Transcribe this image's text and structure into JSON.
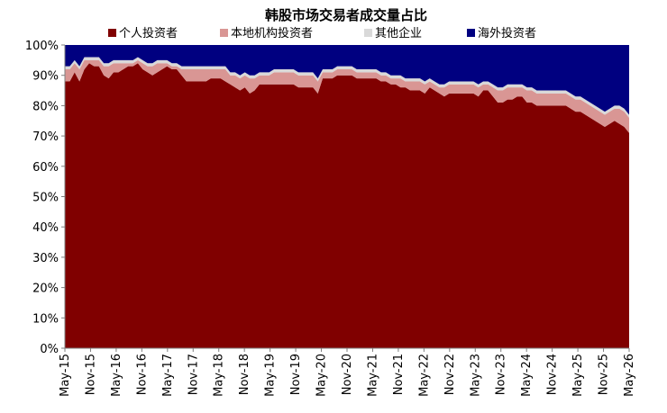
{
  "chart_data": {
    "type": "area",
    "stacked": true,
    "title": "韩股市场交易者成交量占比",
    "xlabel": "",
    "ylabel": "",
    "ylim": [
      0,
      100
    ],
    "y_ticks": [
      "0%",
      "10%",
      "20%",
      "30%",
      "40%",
      "50%",
      "60%",
      "70%",
      "80%",
      "90%",
      "100%"
    ],
    "x_ticks": [
      "May-15",
      "Nov-15",
      "May-16",
      "Nov-16",
      "May-17",
      "Nov-17",
      "May-18",
      "Nov-18",
      "May-19",
      "Nov-19",
      "May-20",
      "Nov-20",
      "May-21",
      "Nov-21",
      "May-22",
      "Nov-22",
      "May-23",
      "Nov-23",
      "May-24",
      "Nov-24",
      "May-25",
      "Nov-25",
      "May-26"
    ],
    "legend_position": "top",
    "grid": false,
    "series": [
      {
        "name": "个人投资者",
        "color": "#800000",
        "values": [
          88,
          88,
          91,
          88,
          92,
          94,
          93,
          93,
          90,
          89,
          91,
          91,
          92,
          93,
          93,
          94,
          92,
          91,
          90,
          91,
          92,
          93,
          92,
          92,
          90,
          88,
          88,
          88,
          88,
          88,
          89,
          89,
          89,
          88,
          87,
          86,
          85,
          86,
          84,
          85,
          87,
          87,
          87,
          87,
          87,
          87,
          87,
          87,
          86,
          86,
          86,
          86,
          84,
          89,
          89,
          89,
          90,
          90,
          90,
          90,
          89,
          89,
          89,
          89,
          89,
          88,
          88,
          87,
          87,
          86,
          86,
          85,
          85,
          85,
          84,
          86,
          85,
          84,
          83,
          84,
          84,
          84,
          84,
          84,
          84,
          83,
          85,
          85,
          83,
          81,
          81,
          82,
          82,
          83,
          83,
          81,
          81,
          80,
          80,
          80,
          80,
          80,
          80,
          80,
          79,
          78,
          78,
          77,
          76,
          75,
          74,
          73,
          74,
          75,
          74,
          73,
          71
        ]
      },
      {
        "name": "本地机构投资者",
        "color": "#d99694",
        "values": [
          4,
          4,
          3,
          4,
          3,
          1,
          2,
          2,
          3,
          4,
          3,
          3,
          2,
          1,
          1,
          1,
          2,
          2,
          3,
          3,
          2,
          1,
          1,
          1,
          2,
          4,
          4,
          4,
          4,
          4,
          3,
          3,
          3,
          4,
          3,
          4,
          4,
          4,
          5,
          4,
          3,
          3,
          3,
          4,
          4,
          4,
          4,
          4,
          4,
          4,
          4,
          4,
          4,
          2,
          2,
          2,
          2,
          2,
          2,
          2,
          2,
          2,
          2,
          2,
          2,
          2,
          2,
          2,
          2,
          3,
          2,
          3,
          3,
          3,
          3,
          2,
          2,
          2,
          3,
          3,
          3,
          3,
          3,
          3,
          3,
          3,
          2,
          2,
          3,
          4,
          4,
          4,
          4,
          3,
          3,
          4,
          4,
          4,
          4,
          4,
          4,
          4,
          4,
          4,
          4,
          4,
          4,
          4,
          4,
          4,
          4,
          4,
          4,
          4,
          5,
          5,
          5
        ]
      },
      {
        "name": "其他企业",
        "color": "#d9d9d9",
        "values": [
          1,
          1,
          1,
          1,
          1,
          1,
          1,
          1,
          1,
          1,
          1,
          1,
          1,
          1,
          1,
          1,
          1,
          1,
          1,
          1,
          1,
          1,
          1,
          1,
          1,
          1,
          1,
          1,
          1,
          1,
          1,
          1,
          1,
          1,
          1,
          1,
          1,
          1,
          1,
          1,
          1,
          1,
          1,
          1,
          1,
          1,
          1,
          1,
          1,
          1,
          1,
          1,
          1,
          1,
          1,
          1,
          1,
          1,
          1,
          1,
          1,
          1,
          1,
          1,
          1,
          1,
          1,
          1,
          1,
          1,
          1,
          1,
          1,
          1,
          1,
          1,
          1,
          1,
          1,
          1,
          1,
          1,
          1,
          1,
          1,
          1,
          1,
          1,
          1,
          1,
          1,
          1,
          1,
          1,
          1,
          1,
          1,
          1,
          1,
          1,
          1,
          1,
          1,
          1,
          1,
          1,
          1,
          1,
          1,
          1,
          1,
          1,
          1,
          1,
          1,
          1,
          1
        ]
      },
      {
        "name": "海外投资者",
        "color": "#000080",
        "values": [
          7,
          7,
          5,
          7,
          4,
          4,
          4,
          4,
          6,
          6,
          5,
          5,
          5,
          5,
          5,
          4,
          5,
          6,
          6,
          5,
          5,
          5,
          6,
          6,
          7,
          7,
          7,
          7,
          7,
          7,
          7,
          7,
          7,
          7,
          9,
          9,
          10,
          9,
          10,
          10,
          9,
          9,
          9,
          8,
          8,
          8,
          8,
          8,
          9,
          9,
          9,
          9,
          11,
          8,
          8,
          8,
          7,
          7,
          7,
          7,
          8,
          8,
          8,
          8,
          8,
          9,
          9,
          10,
          10,
          10,
          11,
          11,
          11,
          11,
          12,
          11,
          12,
          13,
          13,
          12,
          12,
          12,
          12,
          12,
          12,
          13,
          12,
          12,
          13,
          14,
          14,
          13,
          13,
          13,
          13,
          14,
          14,
          15,
          15,
          15,
          15,
          15,
          15,
          15,
          16,
          17,
          17,
          18,
          19,
          20,
          21,
          22,
          21,
          20,
          20,
          21,
          23
        ]
      }
    ]
  }
}
